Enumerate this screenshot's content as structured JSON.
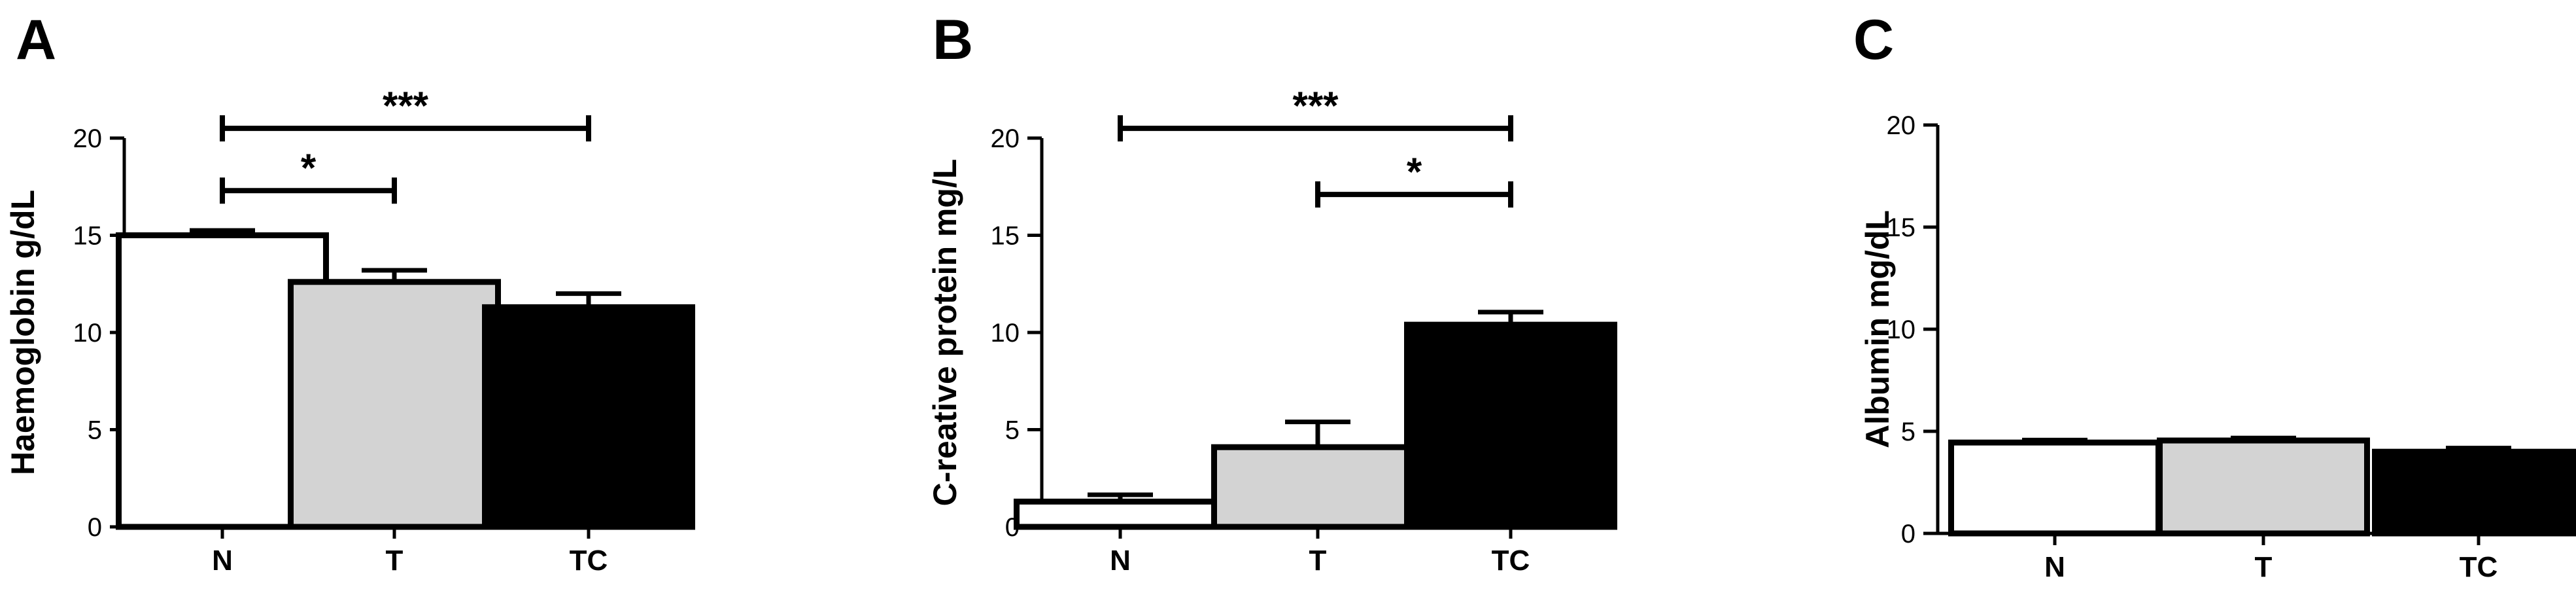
{
  "chart_data": [
    {
      "panel": "A",
      "type": "bar",
      "ylabel": "Haemoglobin g/dL",
      "ylim": [
        0,
        20
      ],
      "yticks": [
        0,
        5,
        10,
        15,
        20
      ],
      "categories": [
        "N",
        "T",
        "TC"
      ],
      "values": [
        15.0,
        12.6,
        11.3
      ],
      "errors": [
        0.25,
        0.6,
        0.7
      ],
      "fill_colors": [
        "#ffffff",
        "#d3d3d3",
        "#000000"
      ],
      "significance": [
        {
          "from": "N",
          "to": "T",
          "label": "*",
          "y": 17.3
        },
        {
          "from": "N",
          "to": "TC",
          "label": "***",
          "y": 20.5
        }
      ]
    },
    {
      "panel": "B",
      "type": "bar",
      "ylabel": "C-reative protein mg/L",
      "ylim": [
        0,
        20
      ],
      "yticks": [
        0,
        5,
        10,
        15,
        20
      ],
      "categories": [
        "N",
        "T",
        "TC"
      ],
      "values": [
        1.3,
        4.1,
        10.4
      ],
      "errors": [
        0.35,
        1.3,
        0.65
      ],
      "fill_colors": [
        "#ffffff",
        "#d3d3d3",
        "#000000"
      ],
      "significance": [
        {
          "from": "T",
          "to": "TC",
          "label": "*",
          "y": 17.1
        },
        {
          "from": "N",
          "to": "TC",
          "label": "***",
          "y": 20.5
        }
      ]
    },
    {
      "panel": "C",
      "type": "bar",
      "ylabel": "Albumin mg/dL",
      "ylim": [
        0,
        20
      ],
      "yticks": [
        0,
        5,
        10,
        15,
        20
      ],
      "categories": [
        "N",
        "T",
        "TC"
      ],
      "values": [
        4.45,
        4.55,
        4.0
      ],
      "errors": [
        0.12,
        0.12,
        0.18
      ],
      "fill_colors": [
        "#ffffff",
        "#d3d3d3",
        "#000000"
      ],
      "significance": []
    }
  ]
}
